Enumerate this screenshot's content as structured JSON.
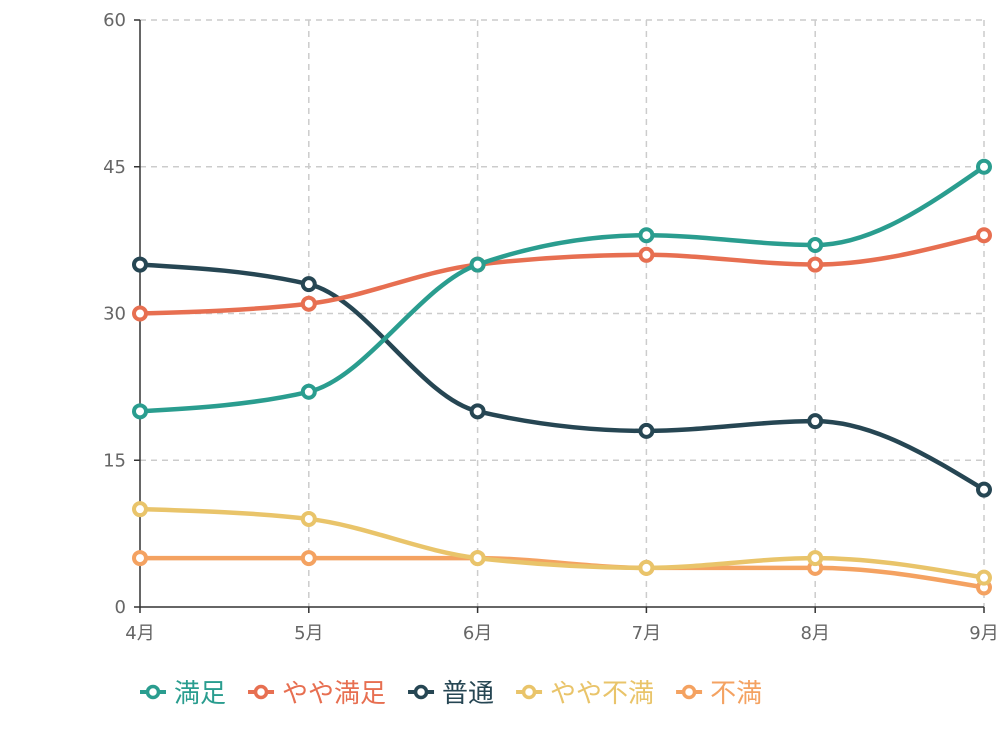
{
  "chart_data": {
    "type": "line",
    "smooth": true,
    "categories": [
      "4月",
      "5月",
      "6月",
      "7月",
      "8月",
      "9月"
    ],
    "ylim": [
      0,
      60
    ],
    "yticks": [
      0,
      15,
      30,
      45,
      60
    ],
    "grid": true,
    "legend_position": "bottom-left",
    "series": [
      {
        "name": "満足",
        "color": "#2a9d8f",
        "values": [
          20,
          22,
          35,
          38,
          37,
          45
        ]
      },
      {
        "name": "やや満足",
        "color": "#e76f51",
        "values": [
          30,
          31,
          35,
          36,
          35,
          38
        ]
      },
      {
        "name": "普通",
        "color": "#264653",
        "values": [
          35,
          33,
          20,
          18,
          19,
          12
        ]
      },
      {
        "name": "やや不満",
        "color": "#e9c46a",
        "values": [
          10,
          9,
          5,
          4,
          5,
          3
        ]
      },
      {
        "name": "不満",
        "color": "#f4a261",
        "values": [
          5,
          5,
          5,
          4,
          4,
          2
        ]
      }
    ]
  }
}
